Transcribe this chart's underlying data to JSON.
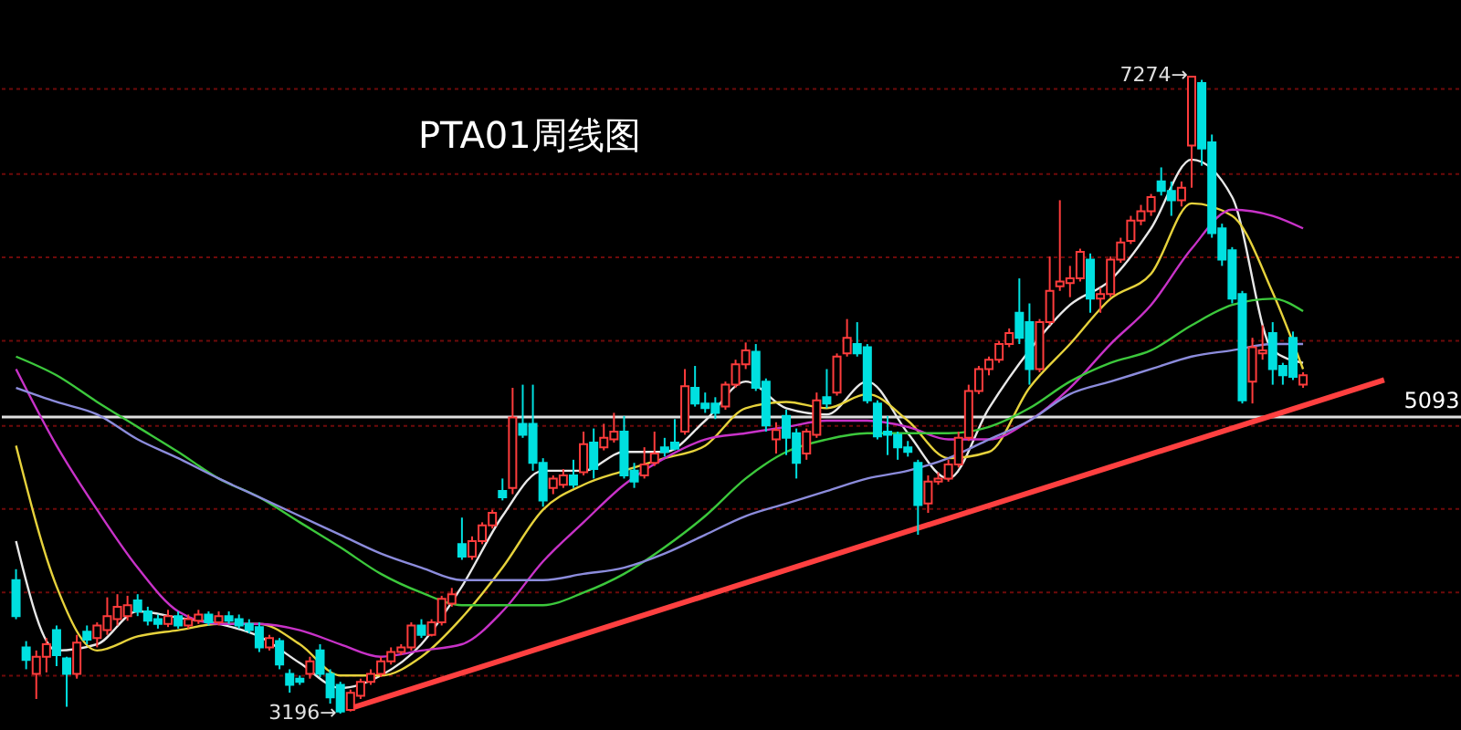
{
  "chart_data": {
    "type": "candlestick",
    "title": "PTA01周线图",
    "categories": [
      null,
      null,
      null,
      null,
      null,
      null,
      null,
      null,
      null,
      null,
      null,
      null,
      null,
      null,
      null,
      null,
      null,
      null,
      null,
      null,
      null,
      null,
      null,
      null,
      null,
      null,
      null,
      null,
      null,
      null,
      null,
      null,
      null,
      null,
      null,
      null,
      null,
      null,
      null,
      null,
      null,
      null,
      null,
      null,
      null,
      null,
      null,
      null,
      null,
      null,
      null,
      null,
      null,
      null,
      null,
      null,
      null,
      null,
      null,
      null,
      null,
      null,
      null,
      null,
      null,
      null,
      null,
      null,
      null,
      null,
      null,
      null,
      null,
      null,
      null,
      null,
      null,
      null,
      null,
      null,
      null,
      null,
      null,
      null,
      null,
      null,
      null,
      null,
      null,
      null,
      null,
      null,
      null,
      null,
      null,
      null,
      null,
      null,
      null,
      null,
      null,
      null,
      null,
      null,
      null,
      null,
      null,
      null,
      null,
      null,
      null,
      null,
      null,
      null,
      null,
      null,
      null,
      null,
      null,
      null,
      null,
      null,
      null,
      null,
      null,
      null,
      null,
      null,
      null,
      null,
      null,
      null,
      null,
      null,
      null,
      null,
      null,
      null,
      null,
      null,
      null,
      null
    ],
    "ohlc": [
      [
        4050,
        4120,
        3800,
        3820
      ],
      [
        3620,
        3660,
        3480,
        3540
      ],
      [
        3450,
        3600,
        3290,
        3560
      ],
      [
        3560,
        3680,
        3460,
        3640
      ],
      [
        3730,
        3760,
        3500,
        3570
      ],
      [
        3550,
        3560,
        3240,
        3450
      ],
      [
        3450,
        3700,
        3420,
        3650
      ],
      [
        3720,
        3760,
        3640,
        3670
      ],
      [
        3680,
        3780,
        3620,
        3760
      ],
      [
        3730,
        3940,
        3700,
        3820
      ],
      [
        3800,
        3960,
        3760,
        3880
      ],
      [
        3820,
        3950,
        3790,
        3890
      ],
      [
        3920,
        3960,
        3820,
        3850
      ],
      [
        3850,
        3880,
        3760,
        3790
      ],
      [
        3800,
        3830,
        3740,
        3770
      ],
      [
        3770,
        3860,
        3750,
        3820
      ],
      [
        3820,
        3850,
        3740,
        3760
      ],
      [
        3760,
        3830,
        3740,
        3800
      ],
      [
        3790,
        3860,
        3770,
        3830
      ],
      [
        3830,
        3850,
        3760,
        3780
      ],
      [
        3780,
        3850,
        3760,
        3820
      ],
      [
        3820,
        3850,
        3770,
        3790
      ],
      [
        3800,
        3830,
        3740,
        3760
      ],
      [
        3770,
        3800,
        3710,
        3730
      ],
      [
        3750,
        3780,
        3590,
        3620
      ],
      [
        3620,
        3700,
        3600,
        3680
      ],
      [
        3660,
        3680,
        3480,
        3510
      ],
      [
        3450,
        3480,
        3330,
        3380
      ],
      [
        3420,
        3440,
        3380,
        3400
      ],
      [
        3450,
        3560,
        3420,
        3530
      ],
      [
        3600,
        3640,
        3430,
        3450
      ],
      [
        3450,
        3480,
        3260,
        3300
      ],
      [
        3380,
        3400,
        3196,
        3210
      ],
      [
        3220,
        3350,
        3210,
        3330
      ],
      [
        3310,
        3420,
        3290,
        3400
      ],
      [
        3400,
        3480,
        3380,
        3450
      ],
      [
        3450,
        3560,
        3430,
        3530
      ],
      [
        3530,
        3620,
        3510,
        3590
      ],
      [
        3590,
        3640,
        3570,
        3620
      ],
      [
        3620,
        3780,
        3600,
        3760
      ],
      [
        3760,
        3800,
        3680,
        3700
      ],
      [
        3700,
        3800,
        3690,
        3780
      ],
      [
        3780,
        3950,
        3760,
        3930
      ],
      [
        3900,
        4000,
        3880,
        3960
      ],
      [
        4280,
        4450,
        4180,
        4200
      ],
      [
        4200,
        4330,
        4180,
        4300
      ],
      [
        4300,
        4420,
        4280,
        4400
      ],
      [
        4400,
        4500,
        4380,
        4480
      ],
      [
        4620,
        4700,
        4560,
        4580
      ],
      [
        4640,
        5280,
        4600,
        5090
      ],
      [
        5050,
        5300,
        4960,
        4980
      ],
      [
        5050,
        5300,
        4750,
        4800
      ],
      [
        4800,
        4830,
        4520,
        4560
      ],
      [
        4640,
        4720,
        4600,
        4700
      ],
      [
        4660,
        4760,
        4640,
        4720
      ],
      [
        4720,
        4820,
        4640,
        4660
      ],
      [
        4740,
        5000,
        4720,
        4920
      ],
      [
        4930,
        5020,
        4700,
        4760
      ],
      [
        4900,
        5050,
        4880,
        4960
      ],
      [
        4950,
        5120,
        4930,
        5000
      ],
      [
        5000,
        5100,
        4700,
        4720
      ],
      [
        4750,
        4800,
        4640,
        4680
      ],
      [
        4720,
        4900,
        4700,
        4790
      ],
      [
        4800,
        5000,
        4780,
        4860
      ],
      [
        4900,
        4960,
        4840,
        4870
      ],
      [
        4930,
        5080,
        4880,
        4890
      ],
      [
        5000,
        5400,
        4980,
        5290
      ],
      [
        5280,
        5420,
        5160,
        5180
      ],
      [
        5180,
        5250,
        5120,
        5150
      ],
      [
        5180,
        5220,
        5080,
        5120
      ],
      [
        5160,
        5320,
        5140,
        5300
      ],
      [
        5300,
        5460,
        5280,
        5430
      ],
      [
        5430,
        5570,
        5400,
        5520
      ],
      [
        5510,
        5560,
        5260,
        5280
      ],
      [
        5320,
        5340,
        5000,
        5040
      ],
      [
        4950,
        5060,
        4860,
        5010
      ],
      [
        5100,
        5140,
        4850,
        4960
      ],
      [
        4990,
        5020,
        4700,
        4800
      ],
      [
        4860,
        5020,
        4820,
        5000
      ],
      [
        4980,
        5250,
        4960,
        5200
      ],
      [
        5220,
        5400,
        5150,
        5180
      ],
      [
        5250,
        5500,
        5230,
        5480
      ],
      [
        5500,
        5720,
        5480,
        5600
      ],
      [
        5560,
        5700,
        5480,
        5500
      ],
      [
        5540,
        5560,
        5180,
        5200
      ],
      [
        5180,
        5200,
        4950,
        4970
      ],
      [
        5000,
        5100,
        4850,
        4980
      ],
      [
        4980,
        5000,
        4820,
        4900
      ],
      [
        4900,
        4940,
        4840,
        4870
      ],
      [
        4800,
        4820,
        4340,
        4530
      ],
      [
        4540,
        4720,
        4480,
        4680
      ],
      [
        4680,
        4740,
        4660,
        4700
      ],
      [
        4700,
        4820,
        4680,
        4790
      ],
      [
        4790,
        5000,
        4770,
        4960
      ],
      [
        4960,
        5300,
        4940,
        5260
      ],
      [
        5260,
        5420,
        5240,
        5400
      ],
      [
        5400,
        5480,
        5360,
        5460
      ],
      [
        5460,
        5580,
        5440,
        5560
      ],
      [
        5560,
        5660,
        5540,
        5630
      ],
      [
        5760,
        5980,
        5560,
        5600
      ],
      [
        5700,
        5820,
        5300,
        5400
      ],
      [
        5400,
        5720,
        5380,
        5700
      ],
      [
        5700,
        6120,
        5680,
        5900
      ],
      [
        5930,
        6480,
        5900,
        5960
      ],
      [
        5950,
        6060,
        5860,
        5980
      ],
      [
        5980,
        6170,
        5960,
        6150
      ],
      [
        6100,
        6140,
        5760,
        5850
      ],
      [
        5850,
        5920,
        5760,
        5880
      ],
      [
        5880,
        6120,
        5860,
        6100
      ],
      [
        6100,
        6240,
        6080,
        6210
      ],
      [
        6220,
        6380,
        6200,
        6350
      ],
      [
        6350,
        6450,
        6320,
        6410
      ],
      [
        6410,
        6520,
        6380,
        6500
      ],
      [
        6600,
        6690,
        6510,
        6540
      ],
      [
        6540,
        6600,
        6380,
        6480
      ],
      [
        6480,
        6600,
        6440,
        6560
      ],
      [
        6830,
        7274,
        6560,
        7270
      ],
      [
        7230,
        7250,
        6700,
        6810
      ],
      [
        6850,
        6900,
        6240,
        6270
      ],
      [
        6300,
        6330,
        6060,
        6100
      ],
      [
        6160,
        6180,
        5820,
        5850
      ],
      [
        5880,
        5900,
        5180,
        5200
      ],
      [
        5320,
        5600,
        5180,
        5540
      ],
      [
        5500,
        5680,
        5460,
        5520
      ],
      [
        5630,
        5700,
        5300,
        5400
      ],
      [
        5420,
        5440,
        5300,
        5360
      ],
      [
        5600,
        5640,
        5330,
        5350
      ],
      [
        5300,
        5380,
        5280,
        5360
      ],
      null,
      null,
      null,
      null,
      null,
      null,
      null,
      null,
      null,
      null,
      null,
      null,
      null,
      null
    ],
    "colors": [
      "#00e0e0",
      "#00e0e0",
      "#ff3c3c",
      "#ff3c3c",
      "#00e0e0",
      "#00e0e0",
      "#ff3c3c",
      "#00e0e0",
      "#ff3c3c",
      "#ff3c3c",
      "#ff3c3c",
      "#ff3c3c",
      "#00e0e0",
      "#00e0e0",
      "#00e0e0",
      "#ff3c3c",
      "#00e0e0",
      "#ff3c3c",
      "#ff3c3c",
      "#00e0e0",
      "#ff3c3c",
      "#00e0e0",
      "#00e0e0",
      "#00e0e0",
      "#00e0e0",
      "#ff3c3c",
      "#00e0e0",
      "#00e0e0",
      "#00e0e0",
      "#ff3c3c",
      "#00e0e0",
      "#00e0e0",
      "#00e0e0",
      "#ff3c3c",
      "#ff3c3c",
      "#ff3c3c",
      "#ff3c3c",
      "#ff3c3c",
      "#ff3c3c",
      "#ff3c3c",
      "#00e0e0",
      "#ff3c3c",
      "#ff3c3c",
      "#ff3c3c",
      "#00e0e0",
      "#ff3c3c",
      "#ff3c3c",
      "#ff3c3c",
      "#00e0e0",
      "#ff3c3c",
      "#00e0e0",
      "#00e0e0",
      "#00e0e0",
      "#ff3c3c",
      "#ff3c3c",
      "#00e0e0",
      "#ff3c3c",
      "#00e0e0",
      "#ff3c3c",
      "#ff3c3c",
      "#00e0e0",
      "#00e0e0",
      "#ff3c3c",
      "#ff3c3c",
      "#00e0e0",
      "#00e0e0",
      "#ff3c3c",
      "#00e0e0",
      "#00e0e0",
      "#00e0e0",
      "#ff3c3c",
      "#ff3c3c",
      "#ff3c3c",
      "#00e0e0",
      "#00e0e0",
      "#ff3c3c",
      "#00e0e0",
      "#00e0e0",
      "#ff3c3c",
      "#ff3c3c",
      "#00e0e0",
      "#ff3c3c",
      "#ff3c3c",
      "#00e0e0",
      "#00e0e0",
      "#00e0e0",
      "#00e0e0",
      "#00e0e0",
      "#00e0e0",
      "#00e0e0",
      "#ff3c3c",
      "#ff3c3c",
      "#ff3c3c",
      "#ff3c3c",
      "#ff3c3c",
      "#ff3c3c",
      "#ff3c3c",
      "#ff3c3c",
      "#ff3c3c",
      "#00e0e0",
      "#00e0e0",
      "#ff3c3c",
      "#ff3c3c",
      "#ff3c3c",
      "#ff3c3c",
      "#ff3c3c",
      "#00e0e0",
      "#ff3c3c",
      "#ff3c3c",
      "#ff3c3c",
      "#ff3c3c",
      "#ff3c3c",
      "#ff3c3c",
      "#00e0e0",
      "#00e0e0",
      "#ff3c3c",
      "#ff3c3c",
      "#00e0e0",
      "#00e0e0",
      "#00e0e0",
      "#00e0e0",
      "#00e0e0",
      "#ff3c3c",
      "#ff3c3c",
      "#00e0e0",
      "#00e0e0",
      "#00e0e0",
      "#ff3c3c",
      null,
      null,
      null,
      null,
      null,
      null,
      null,
      null,
      null,
      null,
      null,
      null,
      null,
      null
    ],
    "series": [
      {
        "type": "line",
        "color": "#e8e8e8",
        "values": [
          4300,
          null,
          null,
          null,
          3600,
          null,
          null,
          null,
          3640,
          null,
          null,
          null,
          3850,
          null,
          null,
          null,
          3810,
          null,
          null,
          null,
          3770,
          null,
          null,
          null,
          3690,
          null,
          null,
          null,
          3520,
          null,
          null,
          null,
          3360,
          null,
          null,
          null,
          3440,
          null,
          null,
          null,
          3640,
          null,
          null,
          null,
          4010,
          null,
          null,
          null,
          4460,
          null,
          null,
          null,
          4750,
          null,
          null,
          null,
          4750,
          null,
          null,
          null,
          4870,
          null,
          null,
          null,
          4870,
          null,
          null,
          null,
          5070,
          null,
          null,
          null,
          5320,
          null,
          null,
          null,
          5150,
          null,
          null,
          null,
          5110,
          null,
          null,
          null,
          5320,
          null,
          null,
          null,
          4990,
          null,
          null,
          null,
          4700,
          null,
          null,
          null,
          5150,
          null,
          null,
          null,
          5520,
          null,
          null,
          null,
          5810,
          null,
          null,
          null,
          5970,
          null,
          null,
          null,
          6300,
          null,
          null,
          null,
          6740,
          null,
          null,
          null,
          6500,
          null,
          null,
          null,
          5520,
          null,
          null,
          5440,
          null,
          null,
          null,
          null,
          null,
          null,
          null,
          null,
          null,
          null,
          null,
          null,
          null,
          null
        ]
      },
      {
        "type": "line",
        "color": "#e6d23c",
        "values": [
          4910,
          null,
          null,
          null,
          4010,
          null,
          null,
          null,
          3600,
          null,
          null,
          null,
          3690,
          null,
          null,
          null,
          3730,
          null,
          null,
          null,
          3770,
          null,
          null,
          null,
          3770,
          null,
          null,
          null,
          3640,
          null,
          null,
          null,
          3440,
          null,
          null,
          null,
          3440,
          null,
          null,
          null,
          3560,
          null,
          null,
          null,
          3810,
          null,
          null,
          null,
          4130,
          null,
          null,
          null,
          4500,
          null,
          null,
          null,
          4660,
          null,
          null,
          null,
          4750,
          null,
          null,
          null,
          4830,
          null,
          null,
          null,
          4910,
          null,
          null,
          null,
          5150,
          null,
          null,
          null,
          5190,
          null,
          null,
          null,
          5150,
          null,
          null,
          null,
          5240,
          null,
          null,
          null,
          5070,
          null,
          null,
          null,
          4830,
          null,
          null,
          null,
          4870,
          null,
          null,
          null,
          5280,
          null,
          null,
          null,
          5560,
          null,
          null,
          null,
          5850,
          null,
          null,
          null,
          6010,
          null,
          null,
          null,
          6460,
          null,
          null,
          null,
          6380,
          null,
          null,
          null,
          5890,
          null,
          null,
          5400,
          null,
          null,
          null,
          null,
          null,
          null,
          null,
          null,
          null,
          null,
          null,
          null,
          null,
          null
        ]
      },
      {
        "type": "line",
        "color": "#c832c8",
        "values": [
          5400,
          null,
          null,
          null,
          4910,
          null,
          null,
          null,
          4500,
          null,
          null,
          null,
          4130,
          null,
          null,
          null,
          3850,
          null,
          null,
          null,
          3770,
          null,
          null,
          null,
          3770,
          null,
          null,
          null,
          3730,
          null,
          null,
          null,
          3640,
          null,
          null,
          null,
          3560,
          null,
          null,
          null,
          3600,
          null,
          null,
          null,
          3640,
          null,
          null,
          null,
          3850,
          null,
          null,
          null,
          4170,
          null,
          null,
          null,
          4420,
          null,
          null,
          null,
          4660,
          null,
          null,
          null,
          4830,
          null,
          null,
          null,
          4950,
          null,
          null,
          null,
          4990,
          null,
          null,
          null,
          5030,
          null,
          null,
          null,
          5070,
          null,
          null,
          null,
          5070,
          null,
          null,
          null,
          5030,
          null,
          null,
          null,
          4950,
          null,
          null,
          null,
          4950,
          null,
          null,
          null,
          5070,
          null,
          null,
          null,
          5280,
          null,
          null,
          null,
          5560,
          null,
          null,
          null,
          5810,
          null,
          null,
          null,
          6170,
          null,
          null,
          null,
          6420,
          null,
          null,
          null,
          6380,
          null,
          null,
          6300,
          null,
          null,
          null,
          null,
          null,
          null,
          null,
          null,
          null,
          null,
          null,
          null,
          null,
          null
        ]
      },
      {
        "type": "line",
        "color": "#3cc83c",
        "values": [
          5480,
          null,
          null,
          null,
          5360,
          null,
          null,
          null,
          5190,
          null,
          null,
          null,
          5030,
          null,
          null,
          null,
          4870,
          null,
          null,
          null,
          4700,
          null,
          null,
          null,
          4580,
          null,
          null,
          null,
          4420,
          null,
          null,
          null,
          4260,
          null,
          null,
          null,
          4090,
          null,
          null,
          null,
          3970,
          null,
          null,
          null,
          3890,
          null,
          null,
          null,
          3890,
          null,
          null,
          null,
          3890,
          null,
          null,
          null,
          3970,
          null,
          null,
          null,
          4090,
          null,
          null,
          null,
          4260,
          null,
          null,
          null,
          4460,
          null,
          null,
          null,
          4700,
          null,
          null,
          null,
          4870,
          null,
          null,
          null,
          4950,
          null,
          null,
          null,
          4990,
          null,
          null,
          null,
          4990,
          null,
          null,
          null,
          4990,
          null,
          null,
          null,
          5030,
          null,
          null,
          null,
          5150,
          null,
          null,
          null,
          5320,
          null,
          null,
          null,
          5440,
          null,
          null,
          null,
          5520,
          null,
          null,
          null,
          5680,
          null,
          null,
          null,
          5810,
          null,
          null,
          null,
          5850,
          null,
          null,
          5770,
          null,
          null,
          null,
          null,
          null,
          null,
          null,
          null,
          null,
          null,
          null,
          null,
          null,
          null
        ]
      },
      {
        "type": "line",
        "color": "#8c8cdc",
        "values": [
          5280,
          null,
          null,
          null,
          5190,
          null,
          null,
          null,
          5110,
          null,
          null,
          null,
          4950,
          null,
          null,
          null,
          4830,
          null,
          null,
          null,
          4700,
          null,
          null,
          null,
          4580,
          null,
          null,
          null,
          4460,
          null,
          null,
          null,
          4340,
          null,
          null,
          null,
          4220,
          null,
          null,
          null,
          4130,
          null,
          null,
          null,
          4050,
          null,
          null,
          null,
          4050,
          null,
          null,
          null,
          4050,
          null,
          null,
          null,
          4090,
          null,
          null,
          null,
          4130,
          null,
          null,
          null,
          4220,
          null,
          null,
          null,
          4340,
          null,
          null,
          null,
          4460,
          null,
          null,
          null,
          4540,
          null,
          null,
          null,
          4620,
          null,
          null,
          null,
          4700,
          null,
          null,
          null,
          4750,
          null,
          null,
          null,
          4830,
          null,
          null,
          null,
          4950,
          null,
          null,
          null,
          5070,
          null,
          null,
          null,
          5240,
          null,
          null,
          null,
          5320,
          null,
          null,
          null,
          5400,
          null,
          null,
          null,
          5480,
          null,
          null,
          null,
          5520,
          null,
          null,
          null,
          5560,
          null,
          null,
          5560,
          null,
          null,
          null,
          null,
          null,
          null,
          null,
          null,
          null,
          null,
          null,
          null,
          null,
          null
        ]
      },
      {
        "type": "line",
        "color": "#ff4040",
        "values": [
          null,
          null,
          null,
          null,
          null,
          null,
          null,
          null,
          null,
          null,
          null,
          null,
          null,
          null,
          null,
          null,
          null,
          null,
          null,
          null,
          null,
          null,
          null,
          null,
          null,
          null,
          null,
          null,
          null,
          null,
          null,
          null,
          null,
          3230,
          null,
          null,
          null,
          null,
          null,
          null,
          null,
          null,
          null,
          null,
          null,
          null,
          null,
          null,
          null,
          null,
          null,
          null,
          null,
          null,
          null,
          null,
          null,
          null,
          null,
          null,
          null,
          null,
          null,
          null,
          null,
          null,
          null,
          null,
          null,
          null,
          null,
          null,
          null,
          null,
          null,
          null,
          null,
          null,
          null,
          null,
          null,
          null,
          null,
          null,
          null,
          null,
          null,
          null,
          null,
          null,
          null,
          null,
          null,
          null,
          null,
          null,
          null,
          null,
          null,
          null,
          null,
          null,
          null,
          null,
          null,
          null,
          null,
          null,
          null,
          null,
          null,
          null,
          null,
          null,
          null,
          null,
          null,
          null,
          null,
          null,
          null,
          null,
          null,
          null,
          null,
          null,
          null,
          null,
          null,
          null,
          null,
          null,
          null,
          null,
          null,
          5330,
          null,
          null,
          null,
          null,
          null,
          null
        ]
      }
    ],
    "yticks": [
      {
        "value": 7191,
        "label": null
      },
      {
        "value": 6647,
        "label": null
      },
      {
        "value": 6114,
        "label": null
      },
      {
        "value": 5581,
        "label": null
      },
      {
        "value": 5037,
        "label": null
      },
      {
        "value": 4505,
        "label": null
      },
      {
        "value": 3972,
        "label": null
      },
      {
        "value": 3439,
        "label": null
      }
    ],
    "grid": "y",
    "tick_labels": false,
    "ref_lines": [
      {
        "axis": "y",
        "value": 5093,
        "label": "5093",
        "color": "#e0e0e0"
      }
    ],
    "annotations": [
      "7274→",
      "3196→"
    ]
  }
}
